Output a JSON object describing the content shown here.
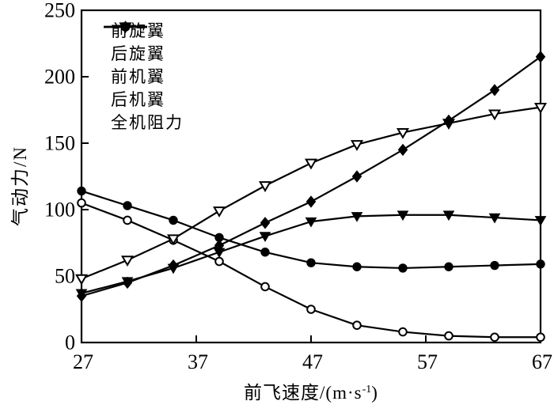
{
  "chart_data": {
    "type": "line",
    "title": "",
    "ylabel": "气动力/N",
    "xlabel_prefix": "前飞速度/(m·s",
    "xlabel_sup": "-1",
    "xlabel_suffix": ")",
    "xlim": [
      27,
      67
    ],
    "ylim": [
      0,
      250
    ],
    "x_ticks": [
      27,
      37,
      47,
      57,
      67
    ],
    "y_ticks": [
      0,
      50,
      100,
      150,
      200,
      250
    ],
    "grid": false,
    "legend_position": "top-left-inside",
    "line_color": "#000000",
    "background_color": "#ffffff",
    "x": [
      27,
      31,
      35,
      39,
      43,
      47,
      51,
      55,
      59,
      63,
      67
    ],
    "series": [
      {
        "key": "front-rotor",
        "name": "前旋翼",
        "marker": "circle-open",
        "values": [
          105,
          92,
          77,
          61,
          42,
          25,
          13,
          8,
          5,
          4,
          4
        ]
      },
      {
        "key": "rear-rotor",
        "name": "后旋翼",
        "marker": "circle-filled",
        "values": [
          114,
          103,
          92,
          79,
          68,
          60,
          57,
          56,
          57,
          58,
          59
        ]
      },
      {
        "key": "front-wing",
        "name": "前机翼",
        "marker": "triangle-down-open",
        "values": [
          48,
          62,
          78,
          99,
          118,
          135,
          149,
          158,
          165,
          172,
          177
        ]
      },
      {
        "key": "rear-wing",
        "name": "后机翼",
        "marker": "triangle-down-filled",
        "values": [
          37,
          46,
          56,
          68,
          80,
          91,
          95,
          96,
          96,
          94,
          92
        ]
      },
      {
        "key": "total-drag",
        "name": "全机阻力",
        "marker": "diamond-filled",
        "values": [
          35,
          45,
          58,
          73,
          90,
          106,
          125,
          145,
          167,
          190,
          215
        ]
      }
    ]
  }
}
